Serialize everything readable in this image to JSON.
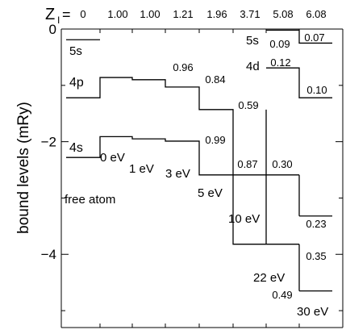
{
  "chart_data": {
    "type": "line",
    "ylabel": "bound levels   (mRy)",
    "ylim": [
      -5.3,
      0
    ],
    "y_ticks": [
      0,
      -2,
      -4
    ],
    "y_tick_labels": [
      "0",
      "−2",
      "−4"
    ],
    "zi_prefix": "Z",
    "zi_subscript": "I",
    "zi_equals": "=",
    "zi_values": [
      "0",
      "1.00",
      "1.00",
      "1.21",
      "1.96",
      "3.71",
      "5.08",
      "6.08"
    ],
    "temperatures": [
      "0 eV",
      "1 eV",
      "3 eV",
      "5 eV",
      "10 eV",
      "22 eV",
      "30 eV"
    ],
    "free_atom_label": "free atom",
    "series": [
      {
        "name": "4s",
        "levels": [
          -2.28,
          -1.91,
          -1.95,
          -1.99,
          -2.59,
          -2.59,
          -3.32
        ],
        "occupations": [
          "",
          "",
          "",
          "0.99",
          "0.87",
          "0.30",
          "0.23"
        ]
      },
      {
        "name": "4p",
        "levels": [
          -1.22,
          -0.86,
          -0.9,
          -1.03,
          -1.43,
          -3.82,
          -4.65
        ],
        "occupations": [
          "",
          "",
          "0.96",
          "0.84",
          "0.59",
          "0.49",
          "0.35"
        ]
      },
      {
        "name": "5s",
        "levels": [
          -0.19,
          null,
          null,
          null,
          null,
          -0.02,
          -0.25
        ],
        "occupations": [
          "",
          "",
          "",
          "",
          "",
          "0.09",
          "0.07"
        ]
      },
      {
        "name": "4d",
        "levels": [
          null,
          null,
          null,
          null,
          null,
          -0.69,
          -1.22
        ],
        "occupations": [
          "",
          "",
          "",
          "",
          "",
          "0.12",
          "0.10"
        ]
      }
    ]
  }
}
